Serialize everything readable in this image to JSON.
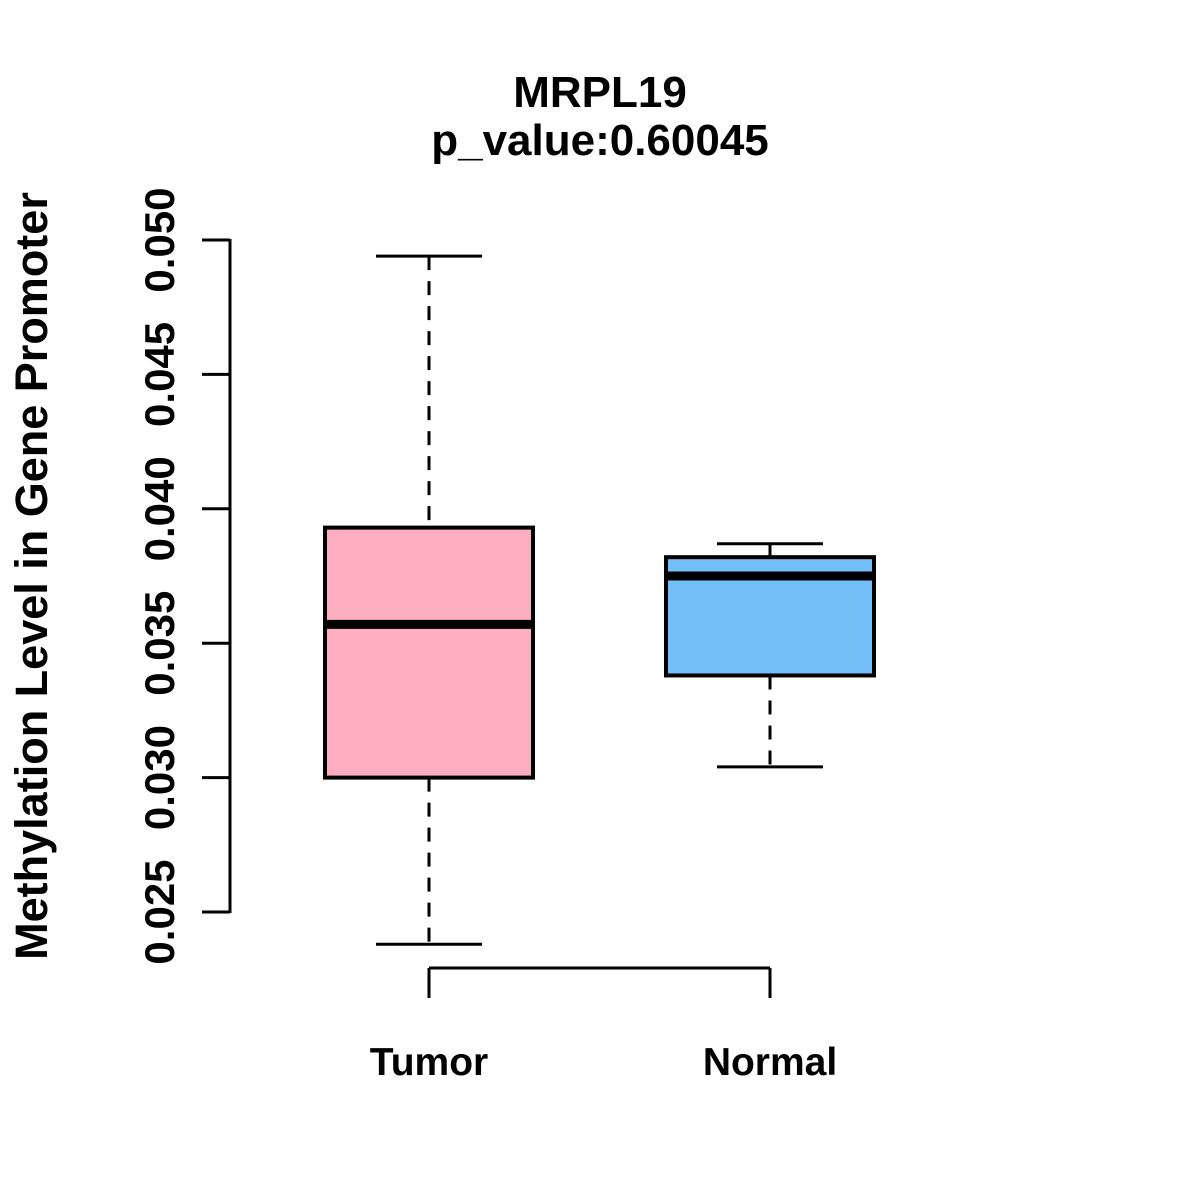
{
  "chart_data": {
    "type": "boxplot",
    "title": "MRPL19",
    "subtitle": "p_value:0.60045",
    "ylabel": "Methylation Level in Gene Promoter",
    "xlabel": "",
    "ylim": [
      0.025,
      0.05
    ],
    "grid": false,
    "yticks": [
      {
        "value": 0.025,
        "label": "0.025"
      },
      {
        "value": 0.03,
        "label": "0.030"
      },
      {
        "value": 0.035,
        "label": "0.035"
      },
      {
        "value": 0.04,
        "label": "0.040"
      },
      {
        "value": 0.045,
        "label": "0.045"
      },
      {
        "value": 0.05,
        "label": "0.050"
      }
    ],
    "groups": [
      {
        "label": "Tumor",
        "fill": "#FCAEBE",
        "stats": {
          "min": 0.0238,
          "q1": 0.03,
          "median": 0.0357,
          "q3": 0.0393,
          "max": 0.0494
        }
      },
      {
        "label": "Normal",
        "fill": "#74BFF7",
        "stats": {
          "min": 0.0304,
          "q1": 0.0338,
          "median": 0.0375,
          "q3": 0.0382,
          "max": 0.0387
        }
      }
    ],
    "colors": {
      "line": "#000000",
      "background": "#FFFFFF"
    }
  }
}
